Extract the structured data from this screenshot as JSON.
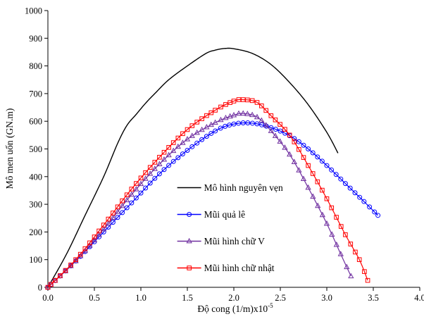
{
  "chart_data": {
    "type": "line",
    "xlabel": "Độ cong (1/m)x10",
    "xlabel_exponent": "-5",
    "ylabel": "Mô men uốn (GN.m)",
    "xlim": [
      0.0,
      4.0
    ],
    "ylim": [
      0,
      1000
    ],
    "x_ticks": [
      "0.0",
      "0.5",
      "1.0",
      "1.5",
      "2.0",
      "2.5",
      "3.0",
      "3.5",
      "4.0"
    ],
    "y_ticks": [
      "0",
      "100",
      "200",
      "300",
      "400",
      "500",
      "600",
      "700",
      "800",
      "900",
      "1000"
    ],
    "grid": false,
    "legend_position": "center-right",
    "series": [
      {
        "name": "Mô hình nguyên vẹn",
        "color": "#000000",
        "marker": "none",
        "points": [
          [
            0.0,
            0
          ],
          [
            0.2,
            120
          ],
          [
            0.4,
            260
          ],
          [
            0.6,
            400
          ],
          [
            0.75,
            520
          ],
          [
            0.85,
            585
          ],
          [
            0.95,
            625
          ],
          [
            1.05,
            665
          ],
          [
            1.15,
            700
          ],
          [
            1.3,
            750
          ],
          [
            1.5,
            800
          ],
          [
            1.7,
            845
          ],
          [
            1.8,
            857
          ],
          [
            1.9,
            863
          ],
          [
            2.0,
            862
          ],
          [
            2.2,
            845
          ],
          [
            2.4,
            805
          ],
          [
            2.6,
            740
          ],
          [
            2.8,
            660
          ],
          [
            3.0,
            560
          ],
          [
            3.12,
            485
          ]
        ]
      },
      {
        "name": "Mũi quả lê",
        "color": "#0000ff",
        "marker": "circle",
        "points": [
          [
            0.0,
            0
          ],
          [
            0.3,
            95
          ],
          [
            0.6,
            200
          ],
          [
            0.9,
            305
          ],
          [
            1.2,
            410
          ],
          [
            1.5,
            495
          ],
          [
            1.8,
            565
          ],
          [
            2.0,
            590
          ],
          [
            2.2,
            593
          ],
          [
            2.4,
            577
          ],
          [
            2.6,
            548
          ],
          [
            2.8,
            500
          ],
          [
            3.0,
            440
          ],
          [
            3.2,
            375
          ],
          [
            3.4,
            310
          ],
          [
            3.55,
            260
          ]
        ]
      },
      {
        "name": "Mũi hình chữ V",
        "color": "#7030a0",
        "marker": "triangle",
        "points": [
          [
            0.0,
            0
          ],
          [
            0.3,
            95
          ],
          [
            0.6,
            210
          ],
          [
            0.9,
            335
          ],
          [
            1.2,
            445
          ],
          [
            1.5,
            535
          ],
          [
            1.8,
            595
          ],
          [
            2.0,
            622
          ],
          [
            2.1,
            628
          ],
          [
            2.25,
            615
          ],
          [
            2.4,
            565
          ],
          [
            2.6,
            480
          ],
          [
            2.8,
            360
          ],
          [
            3.0,
            230
          ],
          [
            3.15,
            120
          ],
          [
            3.26,
            40
          ]
        ]
      },
      {
        "name": "Mũi hình chữ nhật",
        "color": "#ff0000",
        "marker": "square",
        "points": [
          [
            0.0,
            0
          ],
          [
            0.3,
            100
          ],
          [
            0.6,
            225
          ],
          [
            0.9,
            355
          ],
          [
            1.2,
            470
          ],
          [
            1.5,
            570
          ],
          [
            1.8,
            640
          ],
          [
            2.0,
            673
          ],
          [
            2.1,
            678
          ],
          [
            2.25,
            668
          ],
          [
            2.4,
            620
          ],
          [
            2.6,
            550
          ],
          [
            2.8,
            440
          ],
          [
            3.0,
            320
          ],
          [
            3.2,
            190
          ],
          [
            3.35,
            100
          ],
          [
            3.44,
            25
          ]
        ]
      }
    ]
  }
}
